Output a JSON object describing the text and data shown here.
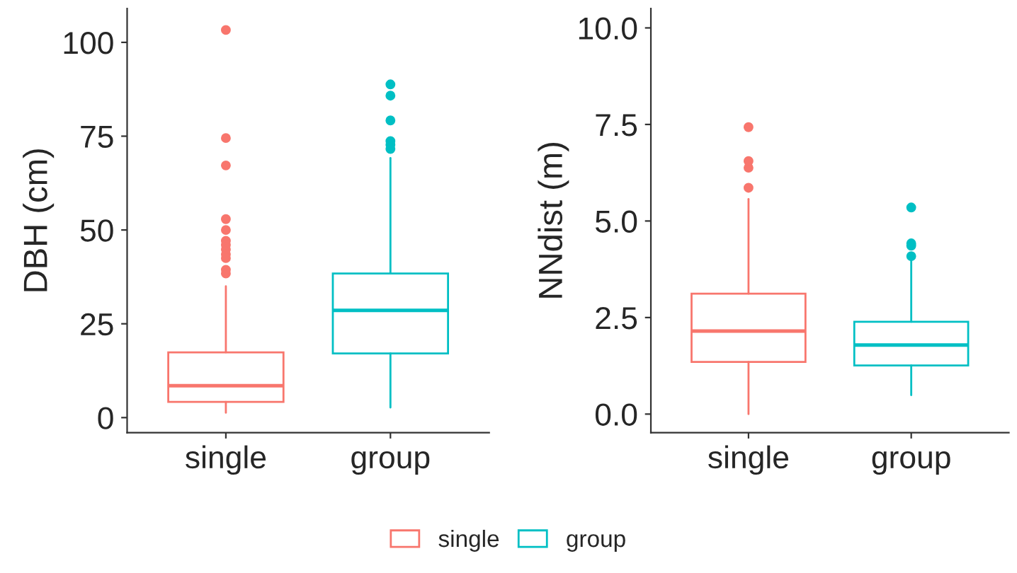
{
  "chart_data": [
    {
      "type": "box",
      "categories": [
        "single",
        "group"
      ],
      "ylabel": "DBH (cm)",
      "ylim": [
        -4,
        109
      ],
      "yticks": [
        0,
        25,
        50,
        75,
        100
      ],
      "grid": false,
      "legend": "bottom",
      "series": [
        {
          "name": "single",
          "color": "#f8766d",
          "boxes": [
            {
              "low": 1.3,
              "q1": 4.2,
              "median": 8.5,
              "q3": 17.4,
              "high": 35,
              "outliers": [
                103.3,
                74.5,
                67.2,
                52.9,
                50,
                47.1,
                46,
                44.8,
                43.5,
                42.5,
                39.4,
                38.4
              ]
            },
            null
          ]
        },
        {
          "name": "group",
          "color": "#00bfc4",
          "boxes": [
            null,
            {
              "low": 2.7,
              "q1": 17.1,
              "median": 28.6,
              "q3": 38.4,
              "high": 69.2,
              "outliers": [
                88.8,
                85.8,
                79.2,
                73.7,
                72.7,
                71.6
              ]
            }
          ]
        }
      ]
    },
    {
      "type": "box",
      "categories": [
        "single",
        "group"
      ],
      "ylabel": "NNdist (m)",
      "ylim": [
        -0.48,
        10.5
      ],
      "yticks": [
        {
          "value": 0,
          "label": "0.0"
        },
        {
          "value": 2.5,
          "label": "2.5"
        },
        {
          "value": 5,
          "label": "5.0"
        },
        {
          "value": 7.5,
          "label": "7.5"
        },
        {
          "value": 10,
          "label": "10.0"
        }
      ],
      "grid": false,
      "series": [
        {
          "color": "#f8766d",
          "boxes": [
            {
              "low": 0,
              "q1": 1.35,
              "median": 2.15,
              "q3": 3.12,
              "high": 5.57,
              "outliers": [
                7.43,
                6.55,
                6.38,
                5.86
              ]
            },
            null
          ]
        },
        {
          "color": "#00bfc4",
          "boxes": [
            null,
            {
              "low": 0.49,
              "q1": 1.26,
              "median": 1.79,
              "q3": 2.39,
              "high": 3.99,
              "outliers": [
                5.35,
                4.42,
                4.36,
                4.09
              ]
            }
          ]
        }
      ]
    }
  ]
}
